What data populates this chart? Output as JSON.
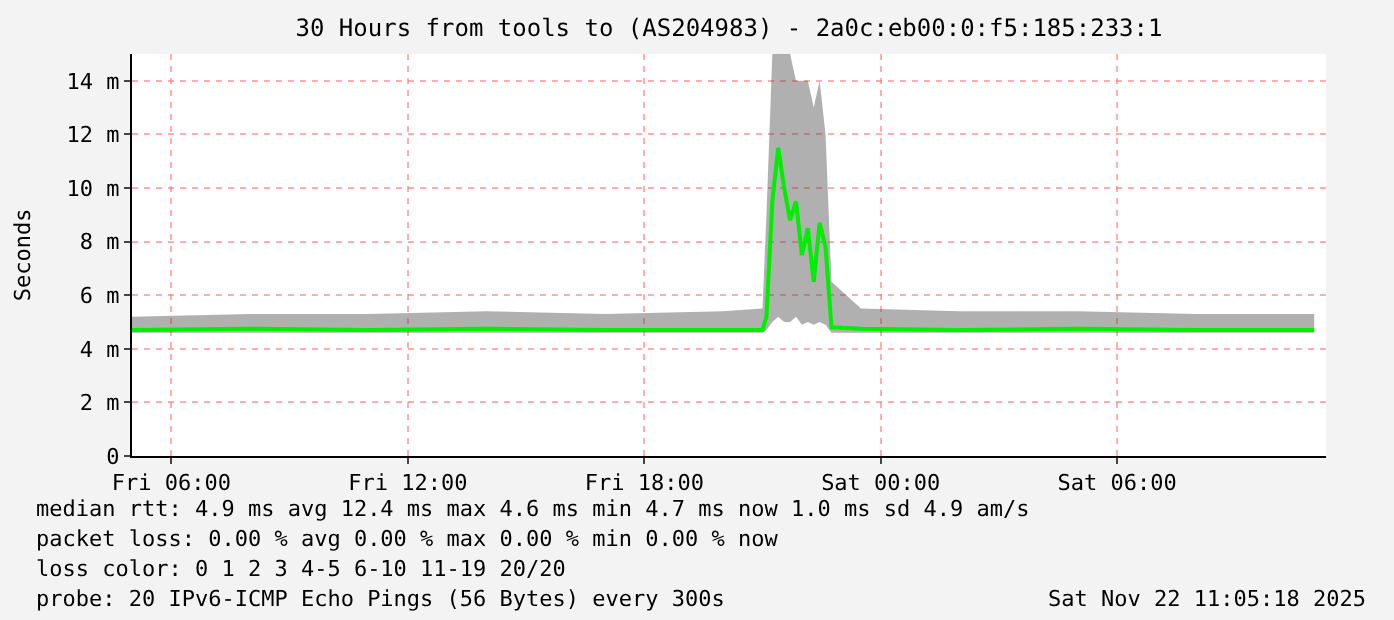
{
  "chart_data": {
    "type": "line",
    "title": "30 Hours from tools to (AS204983) - 2a0c:eb00:0:f5:185:233:1",
    "ylabel": "Seconds",
    "x": [
      "2025-11-21T05:00",
      "2025-11-21T08:00",
      "2025-11-21T11:00",
      "2025-11-21T14:00",
      "2025-11-21T17:00",
      "2025-11-21T20:00",
      "2025-11-21T21:00",
      "2025-11-21T21:06",
      "2025-11-21T21:15",
      "2025-11-21T21:24",
      "2025-11-21T21:33",
      "2025-11-21T21:42",
      "2025-11-21T21:51",
      "2025-11-21T22:00",
      "2025-11-21T22:09",
      "2025-11-21T22:18",
      "2025-11-21T22:27",
      "2025-11-21T22:36",
      "2025-11-21T22:45",
      "2025-11-21T23:30",
      "2025-11-22T02:00",
      "2025-11-22T05:00",
      "2025-11-22T08:00",
      "2025-11-22T11:00"
    ],
    "series": [
      {
        "color": "#00ee00",
        "values": [
          4.7,
          4.75,
          4.7,
          4.75,
          4.7,
          4.7,
          4.7,
          5.2,
          9.5,
          11.5,
          10.0,
          8.8,
          9.5,
          7.5,
          8.5,
          6.5,
          8.7,
          7.8,
          4.8,
          4.75,
          4.7,
          4.75,
          4.7,
          4.7
        ],
        "lower": [
          4.6,
          4.6,
          4.6,
          4.6,
          4.6,
          4.6,
          4.6,
          4.7,
          5.0,
          5.2,
          5.0,
          5.0,
          5.2,
          4.9,
          5.0,
          4.9,
          5.0,
          4.9,
          4.6,
          4.6,
          4.6,
          4.6,
          4.6,
          4.6
        ],
        "upper": [
          5.2,
          5.3,
          5.3,
          5.4,
          5.3,
          5.4,
          5.5,
          9.0,
          15,
          15,
          15,
          15,
          14,
          14,
          14,
          13,
          14,
          12,
          6.5,
          5.5,
          5.4,
          5.4,
          5.3,
          5.3
        ]
      }
    ],
    "xlim": [
      "2025-11-21T05:00",
      "2025-11-22T11:18"
    ],
    "xticks": [
      {
        "value": "2025-11-21T06:00",
        "label": "Fri 06:00"
      },
      {
        "value": "2025-11-21T12:00",
        "label": "Fri 12:00"
      },
      {
        "value": "2025-11-21T18:00",
        "label": "Fri 18:00"
      },
      {
        "value": "2025-11-22T00:00",
        "label": "Sat 00:00"
      },
      {
        "value": "2025-11-22T06:00",
        "label": "Sat 06:00"
      }
    ],
    "ylim": [
      0,
      15
    ],
    "yticks": [
      0,
      {
        "value": 2,
        "label": "2 m"
      },
      {
        "value": 4,
        "label": "4 m"
      },
      {
        "value": 6,
        "label": "6 m"
      },
      {
        "value": 8,
        "label": "8 m"
      },
      {
        "value": 10,
        "label": "10 m"
      },
      {
        "value": 12,
        "label": "12 m"
      },
      {
        "value": 14,
        "label": "14 m"
      }
    ],
    "grid": true,
    "marker": "none",
    "line_style": "solid",
    "annotations": [
      "median rtt: 4.9 ms avg 12.4 ms max 4.6 ms min 4.7 ms now 1.0 ms sd 4.9 am/s",
      "packet loss: 0.00 % avg 0.00 % max 0.00 % min 0.00 % now",
      "loss color: 0 1 2 3 4-5 6-10 11-19 20/20",
      "probe: 20 IPv6-ICMP Echo Pings (56 Bytes) every 300s",
      "Sat Nov 22 11:05:18 2025"
    ]
  }
}
